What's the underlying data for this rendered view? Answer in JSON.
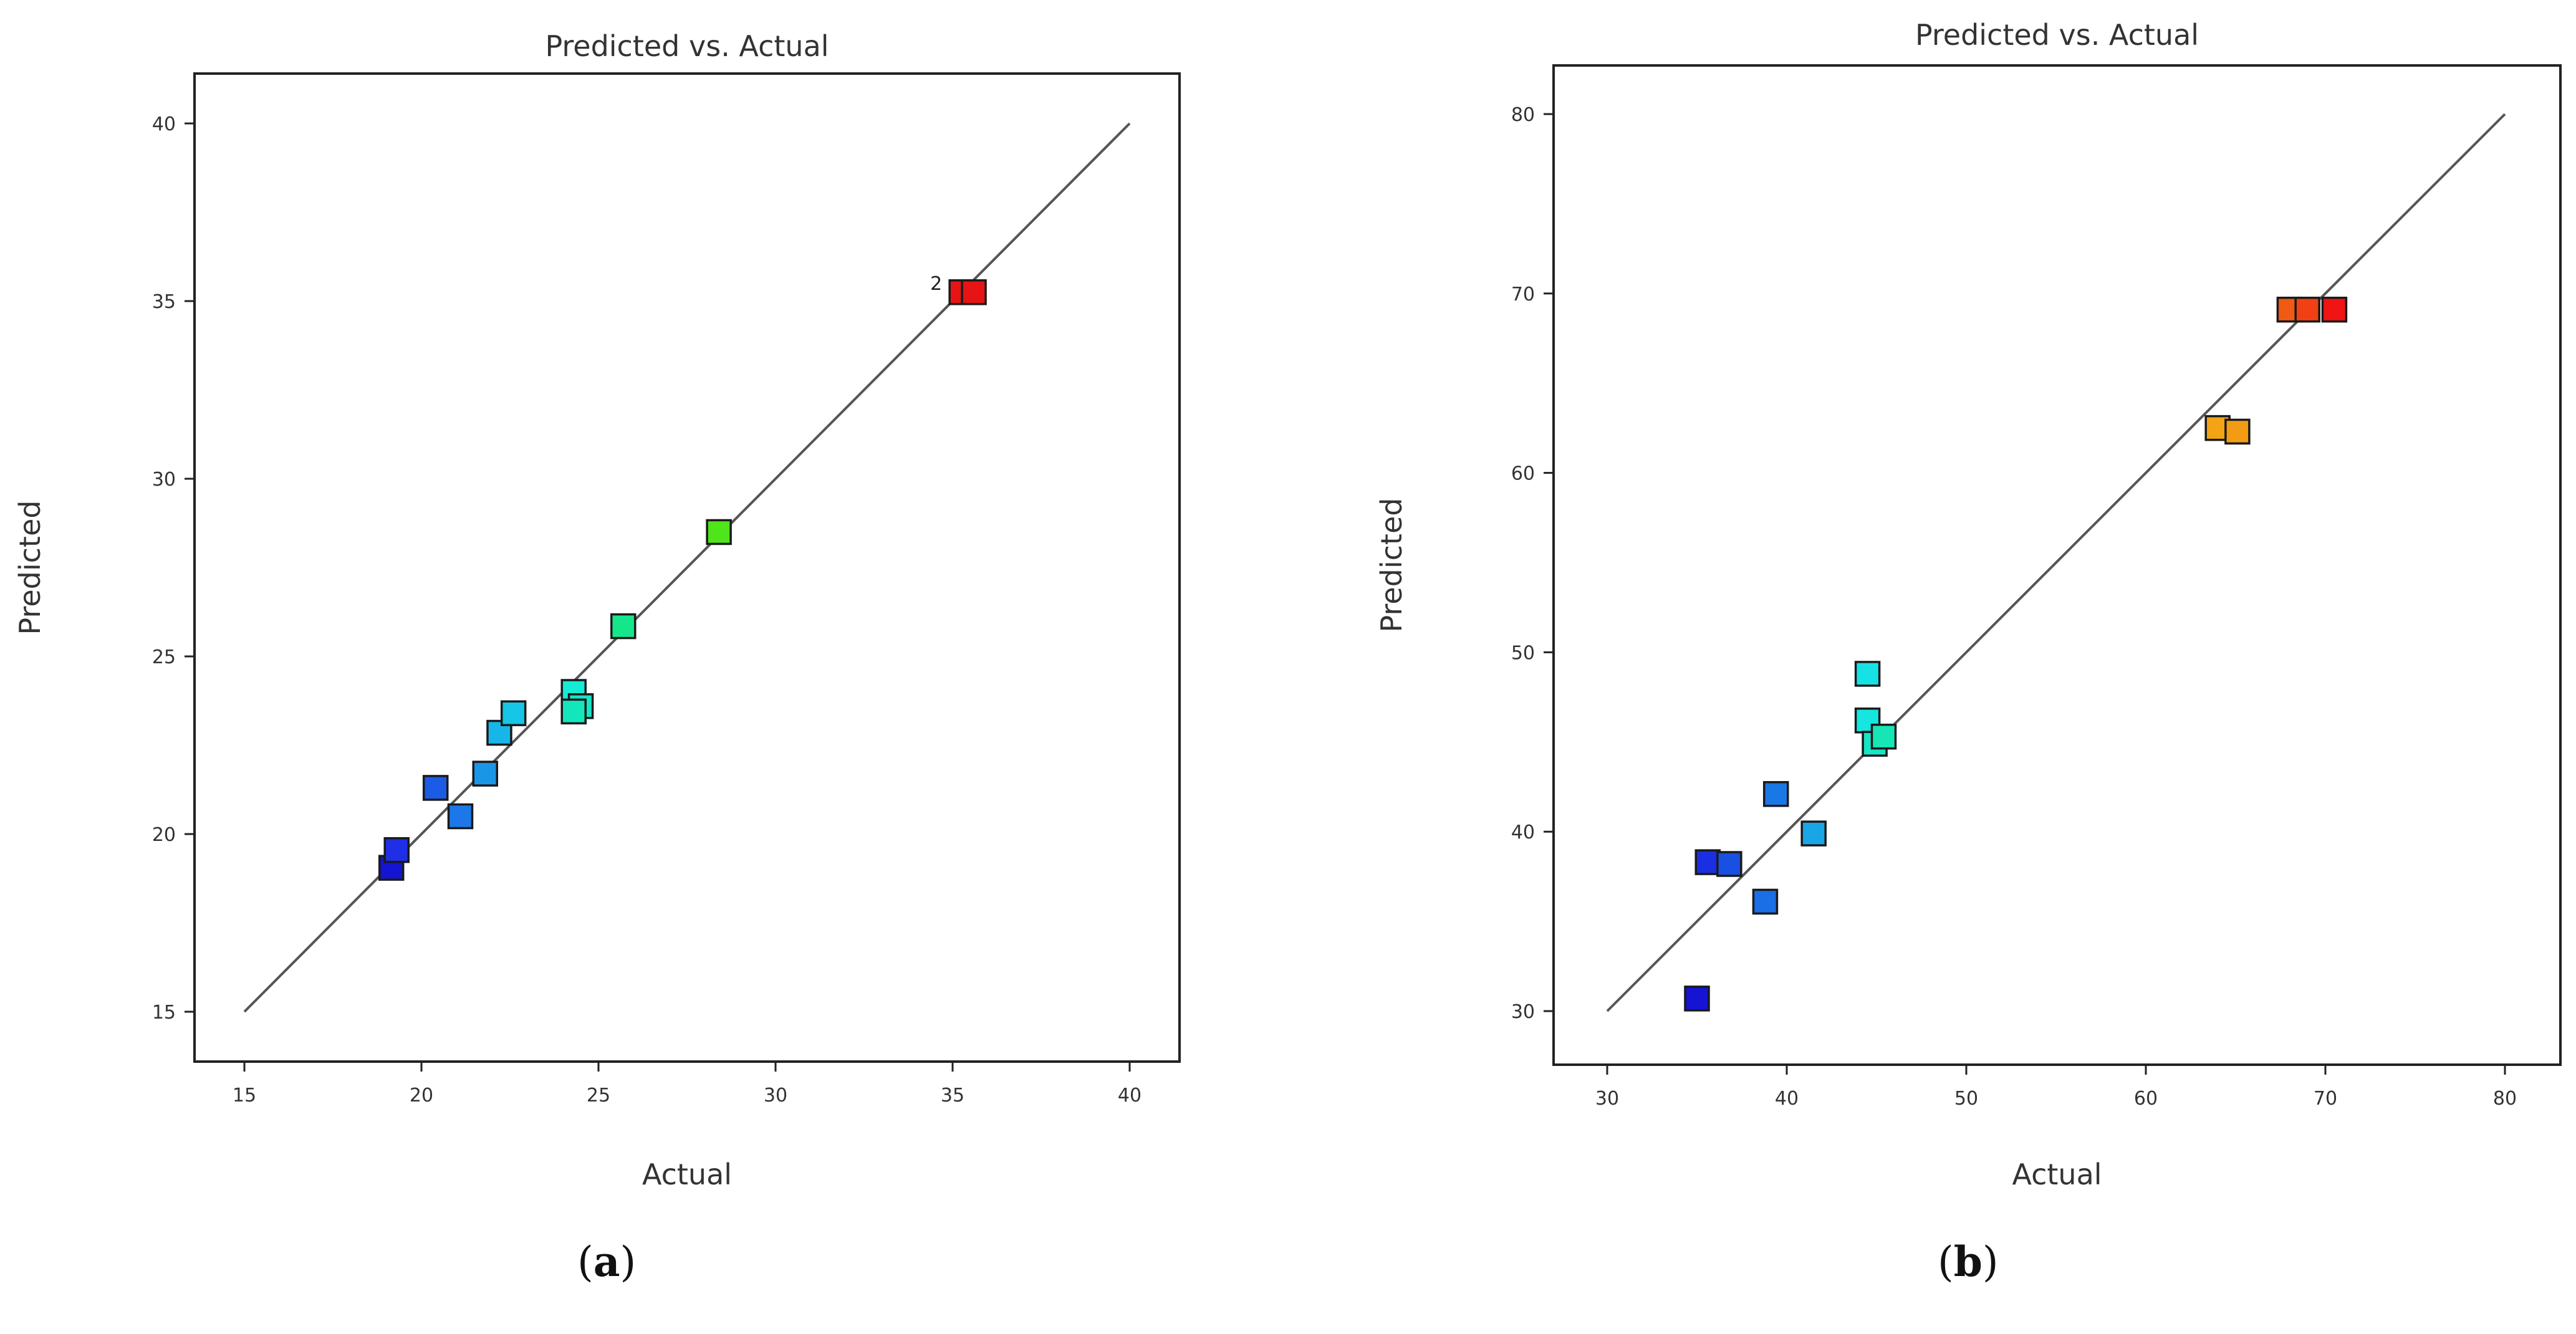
{
  "chart_data": [
    {
      "type": "scatter",
      "panel_label": "a",
      "title": "Predicted vs. Actual",
      "xlabel": "Actual",
      "ylabel": "Predicted",
      "xlim": [
        15,
        40
      ],
      "ylim": [
        15,
        40
      ],
      "xticks": [
        15,
        20,
        25,
        30,
        35,
        40
      ],
      "yticks": [
        15,
        20,
        25,
        30,
        35,
        40
      ],
      "grid": false,
      "reference_line": {
        "from": [
          15,
          15
        ],
        "to": [
          40,
          40
        ]
      },
      "points": [
        {
          "x": 19.15,
          "y": 19.05,
          "color": "#1414d2"
        },
        {
          "x": 19.3,
          "y": 19.55,
          "color": "#1e2fe6"
        },
        {
          "x": 20.4,
          "y": 21.3,
          "color": "#1a5ce6"
        },
        {
          "x": 21.1,
          "y": 20.5,
          "color": "#1c78e8"
        },
        {
          "x": 21.8,
          "y": 21.7,
          "color": "#1a96e6"
        },
        {
          "x": 22.2,
          "y": 22.85,
          "color": "#17b6e8"
        },
        {
          "x": 22.6,
          "y": 23.4,
          "color": "#16c6e6"
        },
        {
          "x": 24.3,
          "y": 24.0,
          "color": "#14ecd6"
        },
        {
          "x": 24.5,
          "y": 23.6,
          "color": "#16e6c6"
        },
        {
          "x": 24.3,
          "y": 23.45,
          "color": "#14e6bc"
        },
        {
          "x": 25.7,
          "y": 25.85,
          "color": "#16e68a"
        },
        {
          "x": 28.4,
          "y": 28.5,
          "color": "#4ee61a"
        },
        {
          "x": 35.25,
          "y": 35.25,
          "color": "#e61414",
          "label": "2"
        },
        {
          "x": 35.6,
          "y": 35.25,
          "color": "#e61414"
        }
      ]
    },
    {
      "type": "scatter",
      "panel_label": "b",
      "title": "Predicted vs. Actual",
      "xlabel": "Actual",
      "ylabel": "Predicted",
      "xlim": [
        30,
        80
      ],
      "ylim": [
        30,
        80
      ],
      "xticks": [
        30,
        40,
        50,
        60,
        70,
        80
      ],
      "yticks": [
        30,
        40,
        50,
        60,
        70,
        80
      ],
      "grid": false,
      "reference_line": {
        "from": [
          30,
          30
        ],
        "to": [
          80,
          80
        ]
      },
      "points": [
        {
          "x": 35.0,
          "y": 30.7,
          "color": "#1414d2"
        },
        {
          "x": 35.6,
          "y": 38.3,
          "color": "#1a2ee2"
        },
        {
          "x": 36.8,
          "y": 38.2,
          "color": "#1a50e2"
        },
        {
          "x": 38.8,
          "y": 36.1,
          "color": "#1a6ee6"
        },
        {
          "x": 39.4,
          "y": 42.1,
          "color": "#1a78e6"
        },
        {
          "x": 41.5,
          "y": 39.9,
          "color": "#1aa6e6"
        },
        {
          "x": 44.5,
          "y": 48.8,
          "color": "#16e2e6"
        },
        {
          "x": 44.5,
          "y": 46.2,
          "color": "#16e6e0"
        },
        {
          "x": 44.9,
          "y": 44.9,
          "color": "#16e6c8"
        },
        {
          "x": 45.4,
          "y": 45.3,
          "color": "#16e6b6"
        },
        {
          "x": 64.0,
          "y": 62.5,
          "color": "#f2a414"
        },
        {
          "x": 65.1,
          "y": 62.3,
          "color": "#f29c14"
        },
        {
          "x": 68.0,
          "y": 69.1,
          "color": "#f05a14"
        },
        {
          "x": 69.0,
          "y": 69.1,
          "color": "#f04014"
        },
        {
          "x": 70.5,
          "y": 69.1,
          "color": "#f01414"
        }
      ]
    }
  ]
}
